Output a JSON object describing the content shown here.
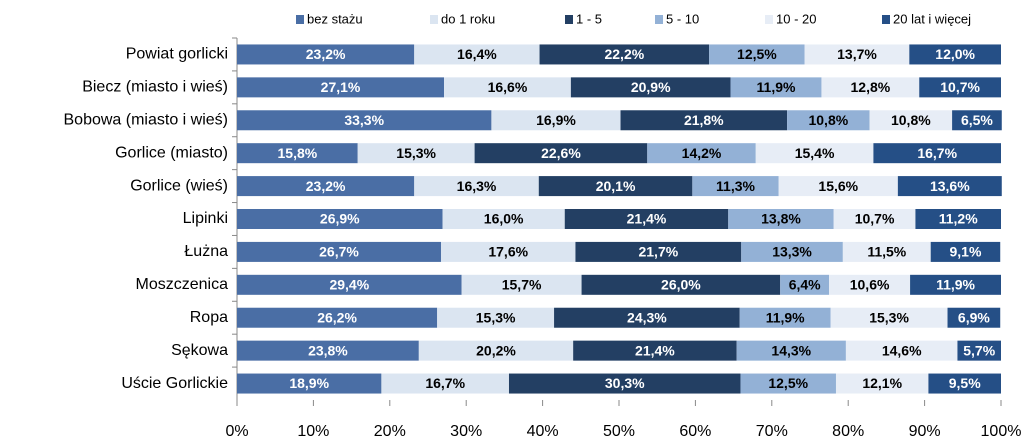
{
  "chart_data": {
    "type": "stacked_bar_horizontal",
    "categories": [
      "Powiat gorlicki",
      "Biecz (miasto  i wieś)",
      "Bobowa (miasto  i wieś)",
      "Gorlice (miasto)",
      "Gorlice (wieś)",
      "Lipinki",
      "Łużna",
      "Moszczenica",
      "Ropa",
      "Sękowa",
      "Uście Gorlickie"
    ],
    "series": [
      {
        "name": "bez stażu",
        "color": "#4a6ea5",
        "values": [
          23.2,
          27.1,
          33.3,
          15.8,
          23.2,
          26.9,
          26.7,
          29.4,
          26.2,
          23.8,
          18.9
        ],
        "value_labels": [
          "23,2%",
          "27,1%",
          "33,3%",
          "15,8%",
          "23,2%",
          "26,9%",
          "26,7%",
          "29,4%",
          "26,2%",
          "23,8%",
          "18,9%"
        ]
      },
      {
        "name": "do 1 roku",
        "color": "#dbe5f1",
        "values": [
          16.4,
          16.6,
          16.9,
          15.3,
          16.3,
          16.0,
          17.6,
          15.7,
          15.3,
          20.2,
          16.7
        ],
        "value_labels": [
          "16,4%",
          "16,6%",
          "16,9%",
          "15,3%",
          "16,3%",
          "16,0%",
          "17,6%",
          "15,7%",
          "15,3%",
          "20,2%",
          "16,7%"
        ]
      },
      {
        "name": "1 - 5",
        "color": "#233f63",
        "values": [
          22.2,
          20.9,
          21.8,
          22.6,
          20.1,
          21.4,
          21.7,
          26.0,
          24.3,
          21.4,
          30.3
        ],
        "value_labels": [
          "22,2%",
          "20,9%",
          "21,8%",
          "22,6%",
          "20,1%",
          "21,4%",
          "21,7%",
          "26,0%",
          "24,3%",
          "21,4%",
          "30,3%"
        ]
      },
      {
        "name": "5 - 10",
        "color": "#93b1d6",
        "values": [
          12.5,
          11.9,
          10.8,
          14.2,
          11.3,
          13.8,
          13.3,
          6.4,
          11.9,
          14.3,
          12.5
        ],
        "value_labels": [
          "12,5%",
          "11,9%",
          "10,8%",
          "14,2%",
          "11,3%",
          "13,8%",
          "13,3%",
          "6,4%",
          "11,9%",
          "14,3%",
          "12,5%"
        ]
      },
      {
        "name": "10 - 20",
        "color": "#e7edf6",
        "values": [
          13.7,
          12.8,
          10.8,
          15.4,
          15.6,
          10.7,
          11.5,
          10.6,
          15.3,
          14.6,
          12.1
        ],
        "value_labels": [
          "13,7%",
          "12,8%",
          "10,8%",
          "15,4%",
          "15,6%",
          "10,7%",
          "11,5%",
          "10,6%",
          "15,3%",
          "14,6%",
          "12,1%"
        ]
      },
      {
        "name": "20 lat i więcej",
        "color": "#254f86",
        "values": [
          12.0,
          10.7,
          6.5,
          16.7,
          13.6,
          11.2,
          9.1,
          11.9,
          6.9,
          5.7,
          9.5
        ],
        "value_labels": [
          "12,0%",
          "10,7%",
          "6,5%",
          "16,7%",
          "13,6%",
          "11,2%",
          "9,1%",
          "11,9%",
          "6,9%",
          "5,7%",
          "9,5%"
        ]
      }
    ],
    "xlim": [
      0,
      100
    ],
    "xticks": [
      {
        "value": 0,
        "label": "0%"
      },
      {
        "value": 10,
        "label": "10%"
      },
      {
        "value": 20,
        "label": "20%"
      },
      {
        "value": 30,
        "label": "30%"
      },
      {
        "value": 40,
        "label": "40%"
      },
      {
        "value": 50,
        "label": "50%"
      },
      {
        "value": 60,
        "label": "60%"
      },
      {
        "value": 70,
        "label": "70%"
      },
      {
        "value": 80,
        "label": "80%"
      },
      {
        "value": 90,
        "label": "90%"
      },
      {
        "value": 100,
        "label": "100%"
      }
    ],
    "legend": "top"
  }
}
